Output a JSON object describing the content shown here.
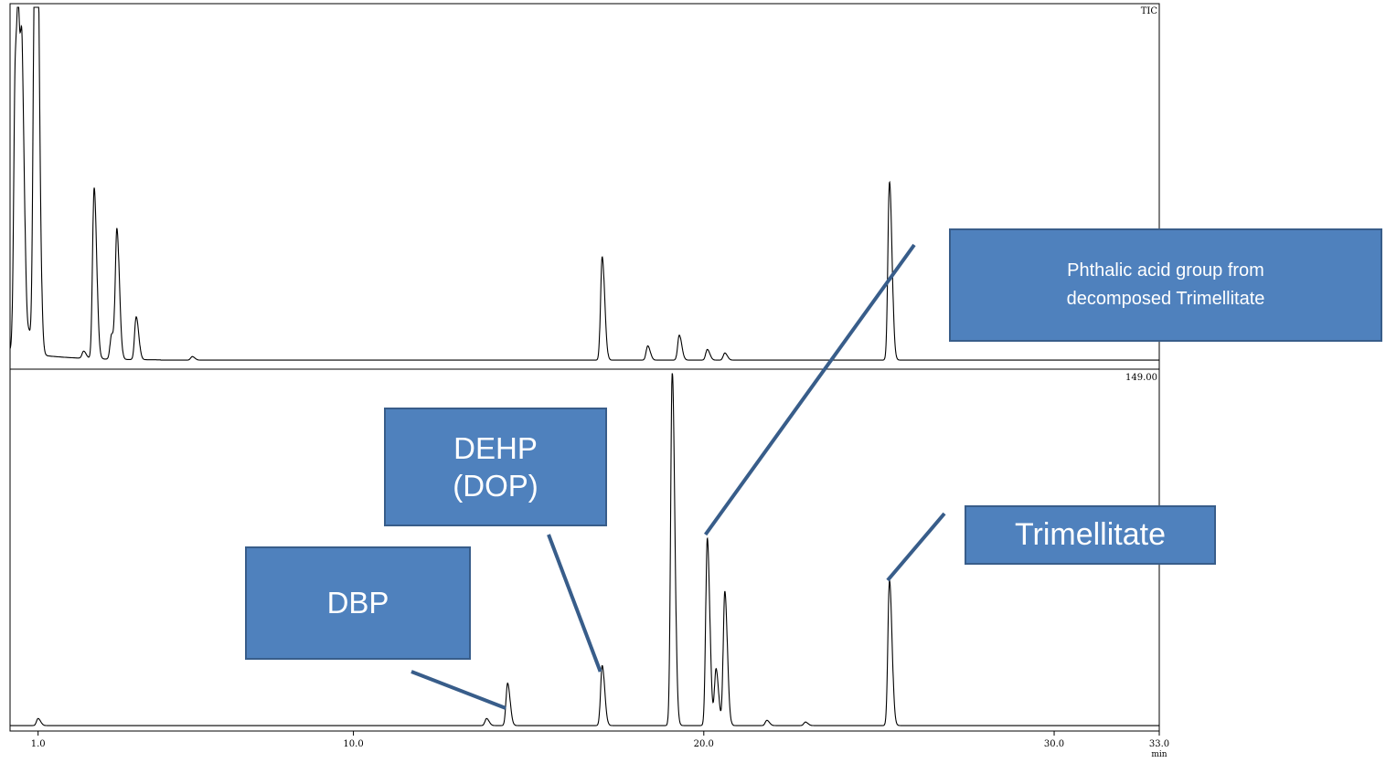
{
  "chart_data": {
    "type": "line",
    "xlabel": "min",
    "xlim": [
      0.2,
      33.0
    ],
    "x_ticks": [
      {
        "value": 1.0,
        "label": "1.0"
      },
      {
        "value": 10.0,
        "label": "10.0"
      },
      {
        "value": 20.0,
        "label": "20.0"
      },
      {
        "value": 30.0,
        "label": "30.0"
      },
      {
        "value": 33.0,
        "label": "33.0"
      }
    ],
    "panels": [
      {
        "label": "TIC",
        "ylim": [
          0,
          1.0
        ],
        "baseline": 0.01,
        "peaks": [
          {
            "x": 0.35,
            "y": 0.78
          },
          {
            "x": 0.45,
            "y": 0.62
          },
          {
            "x": 0.55,
            "y": 0.6
          },
          {
            "x": 0.75,
            "y": 0.05
          },
          {
            "x": 0.9,
            "y": 0.96
          },
          {
            "x": 0.97,
            "y": 0.85
          },
          {
            "x": 1.02,
            "y": 0.1
          },
          {
            "x": 2.3,
            "y": 0.02
          },
          {
            "x": 2.6,
            "y": 0.48
          },
          {
            "x": 3.1,
            "y": 0.07
          },
          {
            "x": 3.25,
            "y": 0.36
          },
          {
            "x": 3.8,
            "y": 0.12
          },
          {
            "x": 5.4,
            "y": 0.01
          },
          {
            "x": 17.1,
            "y": 0.29
          },
          {
            "x": 18.4,
            "y": 0.04
          },
          {
            "x": 19.3,
            "y": 0.07
          },
          {
            "x": 20.1,
            "y": 0.03
          },
          {
            "x": 20.6,
            "y": 0.02
          },
          {
            "x": 25.3,
            "y": 0.5
          }
        ]
      },
      {
        "label": "149.00",
        "ylim": [
          0,
          1.0
        ],
        "baseline": 0.005,
        "peaks": [
          {
            "x": 1.0,
            "y": 0.02
          },
          {
            "x": 13.8,
            "y": 0.02
          },
          {
            "x": 14.4,
            "y": 0.12
          },
          {
            "x": 17.1,
            "y": 0.17
          },
          {
            "x": 19.1,
            "y": 1.0
          },
          {
            "x": 20.1,
            "y": 0.53
          },
          {
            "x": 20.35,
            "y": 0.16
          },
          {
            "x": 20.6,
            "y": 0.38
          },
          {
            "x": 21.8,
            "y": 0.015
          },
          {
            "x": 22.9,
            "y": 0.01
          },
          {
            "x": 25.3,
            "y": 0.41
          }
        ]
      }
    ],
    "annotations": [
      {
        "id": "dbp",
        "lines": [
          "DBP"
        ],
        "target_panel": 1,
        "target_x": 14.4
      },
      {
        "id": "dehp",
        "lines": [
          "DEHP",
          "(DOP)"
        ],
        "target_panel": 1,
        "target_x": 17.1
      },
      {
        "id": "phthalic",
        "lines": [
          "Phthalic acid group from",
          "decomposed Trimellitate"
        ],
        "target_panel": 1,
        "target_x": 20.1
      },
      {
        "id": "trimellitate",
        "lines": [
          "Trimellitate"
        ],
        "target_panel": 1,
        "target_x": 25.3
      }
    ]
  },
  "colors": {
    "callout_fill": "#4f81bd",
    "callout_border": "#385d8a",
    "leader_line": "#385d8a",
    "trace": "#000000"
  }
}
